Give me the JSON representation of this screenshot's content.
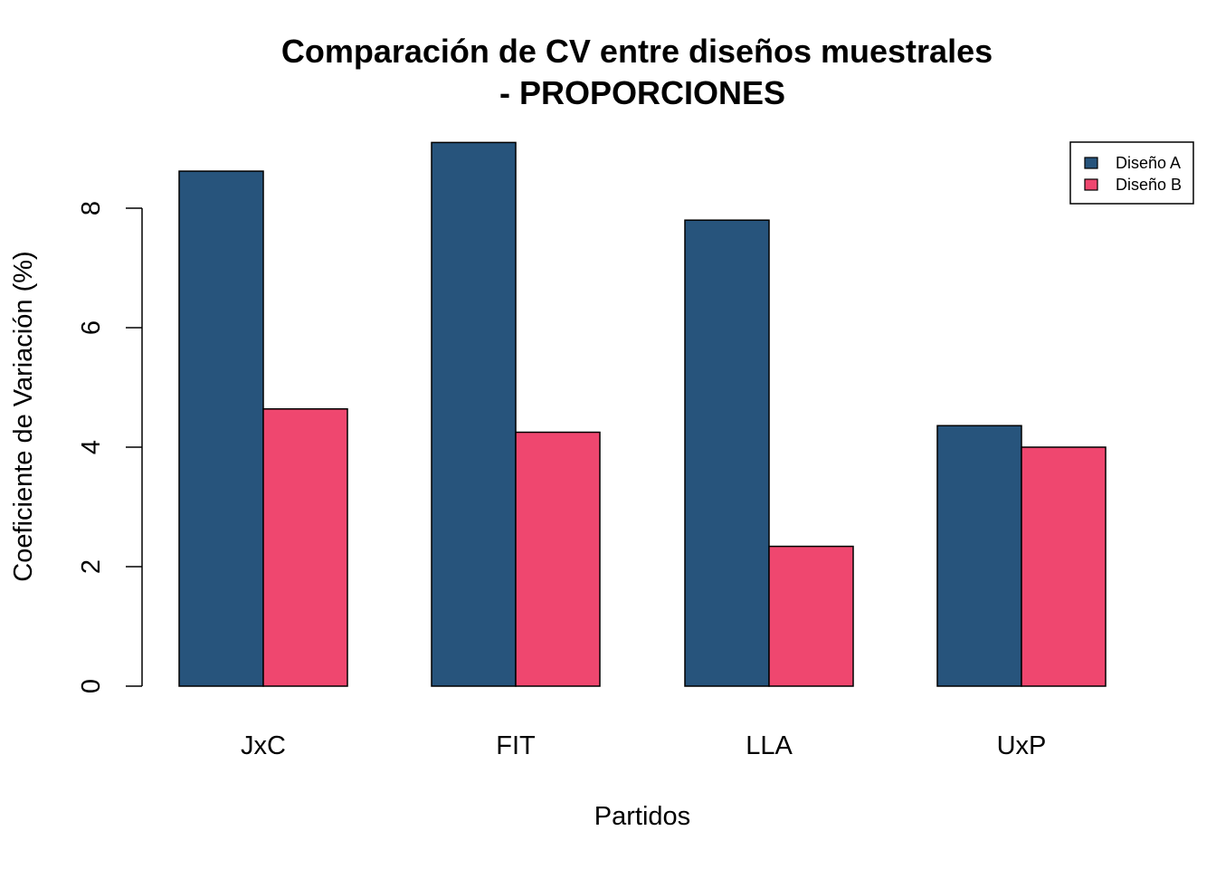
{
  "chart_data": {
    "type": "bar",
    "title": "Comparación de CV entre diseños muestrales",
    "subtitle": "- PROPORCIONES",
    "xlabel": "Partidos",
    "ylabel": "Coeficiente de Variación (%)",
    "categories": [
      "JxC",
      "FIT",
      "LLA",
      "UxP"
    ],
    "series": [
      {
        "name": "Diseño A",
        "color": "#27547C",
        "values": [
          8.62,
          9.1,
          7.8,
          4.36
        ]
      },
      {
        "name": "Diseño B",
        "color": "#EF476F",
        "values": [
          4.64,
          4.25,
          2.34,
          4.0
        ]
      }
    ],
    "ylim": [
      0,
      9.1
    ],
    "yticks": [
      0,
      2,
      4,
      6,
      8
    ],
    "grid": false,
    "legend_position": "top-right"
  }
}
